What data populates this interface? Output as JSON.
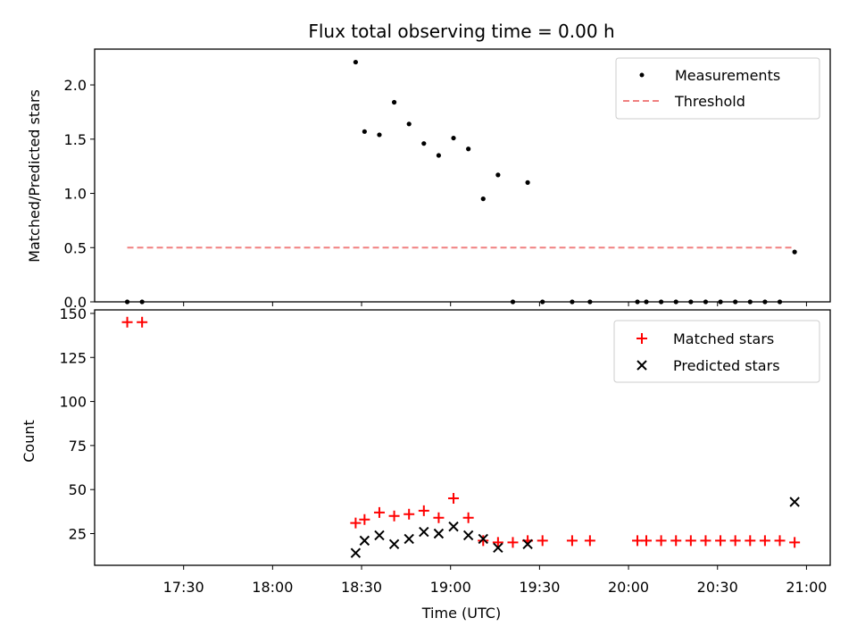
{
  "title": "Flux total observing time = 0.00 h",
  "x_ticks": [
    "17:30",
    "18:00",
    "18:30",
    "19:00",
    "19:30",
    "20:00",
    "20:30",
    "21:00"
  ],
  "xlabel": "Time (UTC)",
  "chart_data": [
    {
      "type": "scatter",
      "ylabel": "Matched/Predicted stars",
      "xlim_minutes_since_midnight": [
        1020,
        1268
      ],
      "ylim": [
        0,
        2.33
      ],
      "y_ticks": [
        "0.0",
        "0.5",
        "1.0",
        "1.5",
        "2.0"
      ],
      "grid": false,
      "legend_placement": "top-right",
      "legend": [
        {
          "label": "Measurements",
          "marker": "dot",
          "color": "#000000"
        },
        {
          "label": "Threshold",
          "marker": "dashed-line",
          "color": "#f08080"
        }
      ],
      "threshold": {
        "value": 0.5,
        "x_start": "17:11",
        "x_end": "20:56",
        "color": "#f08080"
      },
      "series": [
        {
          "name": "Measurements",
          "color": "#000000",
          "points": [
            [
              "17:11",
              0
            ],
            [
              "17:16",
              0
            ],
            [
              "18:28",
              2.21
            ],
            [
              "18:31",
              1.57
            ],
            [
              "18:36",
              1.54
            ],
            [
              "18:41",
              1.84
            ],
            [
              "18:46",
              1.64
            ],
            [
              "18:51",
              1.46
            ],
            [
              "18:56",
              1.35
            ],
            [
              "19:01",
              1.51
            ],
            [
              "19:06",
              1.41
            ],
            [
              "19:11",
              0.95
            ],
            [
              "19:16",
              1.17
            ],
            [
              "19:21",
              0
            ],
            [
              "19:26",
              1.1
            ],
            [
              "19:31",
              0
            ],
            [
              "19:41",
              0
            ],
            [
              "19:47",
              0
            ],
            [
              "20:03",
              0
            ],
            [
              "20:06",
              0
            ],
            [
              "20:11",
              0
            ],
            [
              "20:16",
              0
            ],
            [
              "20:21",
              0
            ],
            [
              "20:26",
              0
            ],
            [
              "20:31",
              0
            ],
            [
              "20:36",
              0
            ],
            [
              "20:41",
              0
            ],
            [
              "20:46",
              0
            ],
            [
              "20:51",
              0
            ],
            [
              "20:56",
              0.46
            ]
          ]
        }
      ]
    },
    {
      "type": "scatter",
      "ylabel": "Count",
      "xlim_minutes_since_midnight": [
        1020,
        1268
      ],
      "ylim": [
        7,
        152
      ],
      "y_ticks": [
        "25",
        "50",
        "75",
        "100",
        "125",
        "150"
      ],
      "grid": false,
      "legend_placement": "top-right",
      "legend": [
        {
          "label": "Matched stars",
          "marker": "plus",
          "color": "#ff0000"
        },
        {
          "label": "Predicted stars",
          "marker": "x",
          "color": "#000000"
        }
      ],
      "series": [
        {
          "name": "Matched stars",
          "color": "#ff0000",
          "marker": "plus",
          "points": [
            [
              "17:11",
              145
            ],
            [
              "17:16",
              145
            ],
            [
              "18:28",
              31
            ],
            [
              "18:31",
              33
            ],
            [
              "18:36",
              37
            ],
            [
              "18:41",
              35
            ],
            [
              "18:46",
              36
            ],
            [
              "18:51",
              38
            ],
            [
              "18:56",
              34
            ],
            [
              "19:01",
              45
            ],
            [
              "19:06",
              34
            ],
            [
              "19:11",
              21
            ],
            [
              "19:16",
              20
            ],
            [
              "19:21",
              20
            ],
            [
              "19:26",
              21
            ],
            [
              "19:31",
              21
            ],
            [
              "19:41",
              21
            ],
            [
              "19:47",
              21
            ],
            [
              "20:03",
              21
            ],
            [
              "20:06",
              21
            ],
            [
              "20:11",
              21
            ],
            [
              "20:16",
              21
            ],
            [
              "20:21",
              21
            ],
            [
              "20:26",
              21
            ],
            [
              "20:31",
              21
            ],
            [
              "20:36",
              21
            ],
            [
              "20:41",
              21
            ],
            [
              "20:46",
              21
            ],
            [
              "20:51",
              21
            ],
            [
              "20:56",
              20
            ]
          ]
        },
        {
          "name": "Predicted stars",
          "color": "#000000",
          "marker": "x",
          "points": [
            [
              "18:28",
              14
            ],
            [
              "18:31",
              21
            ],
            [
              "18:36",
              24
            ],
            [
              "18:41",
              19
            ],
            [
              "18:46",
              22
            ],
            [
              "18:51",
              26
            ],
            [
              "18:56",
              25
            ],
            [
              "19:01",
              29
            ],
            [
              "19:06",
              24
            ],
            [
              "19:11",
              22
            ],
            [
              "19:16",
              17
            ],
            [
              "19:26",
              19
            ],
            [
              "20:56",
              43
            ]
          ]
        }
      ]
    }
  ]
}
